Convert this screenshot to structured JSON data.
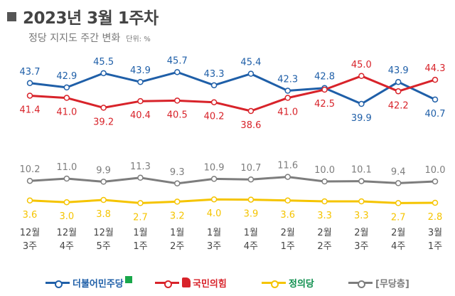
{
  "header": {
    "title": "2023년 3월 1주차",
    "subtitle": "정당 지지도 주간 변화",
    "unit": "단위: %"
  },
  "colors": {
    "dp": "#1f5fa8",
    "ppp": "#d8232a",
    "justice": "#f5c400",
    "independent": "#7d7d7d",
    "justice_accent": "#0f8f4e",
    "dp_badge": "#19a74a"
  },
  "legend": [
    {
      "key": "dp",
      "label": "더불어민주당"
    },
    {
      "key": "ppp",
      "label": "국민의힘"
    },
    {
      "key": "justice",
      "label": "정의당"
    },
    {
      "key": "independent",
      "label": "[무당층]"
    }
  ],
  "chart_data": {
    "type": "line",
    "categories": [
      [
        "12월",
        "3주"
      ],
      [
        "12월",
        "4주"
      ],
      [
        "12월",
        "5주"
      ],
      [
        "1월",
        "1주"
      ],
      [
        "1월",
        "2주"
      ],
      [
        "1월",
        "3주"
      ],
      [
        "1월",
        "4주"
      ],
      [
        "2월",
        "1주"
      ],
      [
        "2월",
        "2주"
      ],
      [
        "2월",
        "3주"
      ],
      [
        "2월",
        "4주"
      ],
      [
        "3월",
        "1주"
      ]
    ],
    "series": [
      {
        "key": "dp",
        "name": "더불어민주당",
        "values": [
          43.7,
          42.9,
          45.5,
          43.9,
          45.7,
          43.3,
          45.4,
          42.3,
          42.8,
          39.9,
          43.9,
          40.7
        ]
      },
      {
        "key": "ppp",
        "name": "국민의힘",
        "values": [
          41.4,
          41.0,
          39.2,
          40.4,
          40.5,
          40.2,
          38.6,
          41.0,
          42.5,
          45.0,
          42.2,
          44.3
        ]
      },
      {
        "key": "independent",
        "name": "[무당층]",
        "values": [
          10.2,
          11.0,
          9.9,
          11.3,
          9.3,
          10.9,
          10.7,
          11.6,
          10.0,
          10.1,
          9.4,
          10.0
        ]
      },
      {
        "key": "justice",
        "name": "정의당",
        "values": [
          3.6,
          3.0,
          3.8,
          2.7,
          3.2,
          4.0,
          3.9,
          3.6,
          3.3,
          3.3,
          2.7,
          2.8
        ]
      }
    ],
    "label_positions": {
      "dp": [
        "above",
        "above",
        "above",
        "above",
        "above",
        "above",
        "above",
        "above",
        "above",
        "below",
        "above",
        "below"
      ],
      "ppp": [
        "below",
        "below",
        "below",
        "below",
        "below",
        "below",
        "below",
        "below",
        "below",
        "above",
        "below",
        "above"
      ],
      "independent": [
        "above",
        "above",
        "above",
        "above",
        "above",
        "above",
        "above",
        "above",
        "above",
        "above",
        "above",
        "above"
      ],
      "justice": [
        "below",
        "below",
        "below",
        "below",
        "below",
        "below",
        "below",
        "below",
        "below",
        "below",
        "below",
        "below"
      ]
    }
  }
}
